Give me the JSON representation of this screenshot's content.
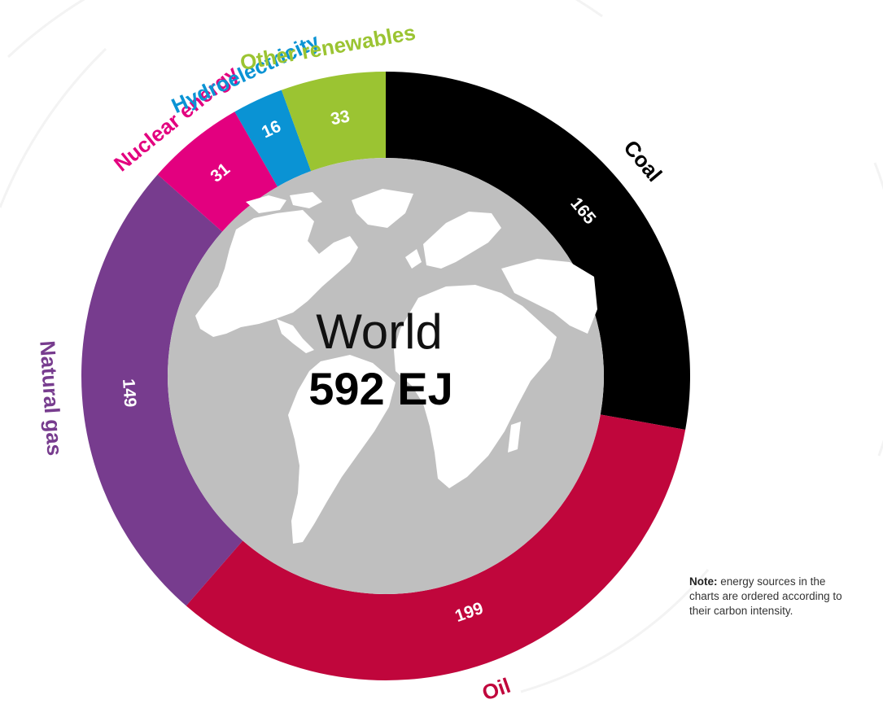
{
  "colors": {
    "Coal": "#000000",
    "Oil": "#c0063c",
    "Natural gas": "#773c8e",
    "Nuclear energy": "#e3007f",
    "Hydroelectricity": "#0a93d4",
    "Other renewables": "#9bc432",
    "globe": "#bfbfbf",
    "land": "#ffffff"
  },
  "chart_data": {
    "type": "pie",
    "style": "donut",
    "center_title": "World",
    "center_total": "592 EJ",
    "categories": [
      "Coal",
      "Oil",
      "Natural gas",
      "Nuclear energy",
      "Hydroelectricity",
      "Other renewables"
    ],
    "values": [
      165,
      199,
      149,
      31,
      16,
      33
    ],
    "value_labels": [
      "165",
      "199",
      "149",
      "31",
      "16",
      "33"
    ],
    "order": "clockwise from top"
  },
  "note": {
    "label": "Note:",
    "text": "energy sources in the charts are ordered according to their carbon intensity."
  }
}
